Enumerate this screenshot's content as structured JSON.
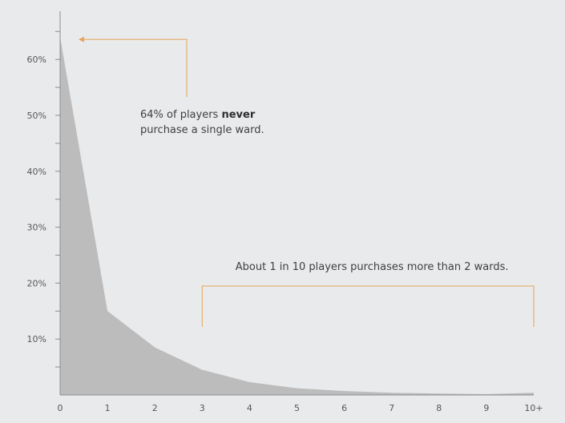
{
  "chart_data": {
    "type": "area",
    "x_categories": [
      "0",
      "1",
      "2",
      "3",
      "4",
      "5",
      "6",
      "7",
      "8",
      "9",
      "10+"
    ],
    "values": [
      64,
      15,
      8.5,
      4.5,
      2.3,
      1.2,
      0.7,
      0.4,
      0.25,
      0.15,
      0.4
    ],
    "y_unit": "%",
    "ylim": [
      0,
      68
    ],
    "y_ticks": [
      10,
      20,
      30,
      40,
      50,
      60
    ],
    "y_tick_labels": [
      "10%",
      "20%",
      "30%",
      "40%",
      "50%",
      "60%"
    ],
    "y_minor_tick_step": 5,
    "grid": false,
    "colors": {
      "area": "#bcbcbc",
      "axis": "#8a8d90",
      "annotation": "#e8a35a",
      "background": "#e9eaeb"
    },
    "annotations": [
      {
        "text_parts": [
          {
            "text": "64% of players ",
            "bold": false
          },
          {
            "text": "never",
            "bold": true
          }
        ],
        "text_line2": "purchase a single ward.",
        "points_to_x": "0",
        "points_to_y": 64
      },
      {
        "text": "About 1 in 10 players purchases more than 2 wards.",
        "bracket_from": "3",
        "bracket_to": "10+"
      }
    ]
  }
}
